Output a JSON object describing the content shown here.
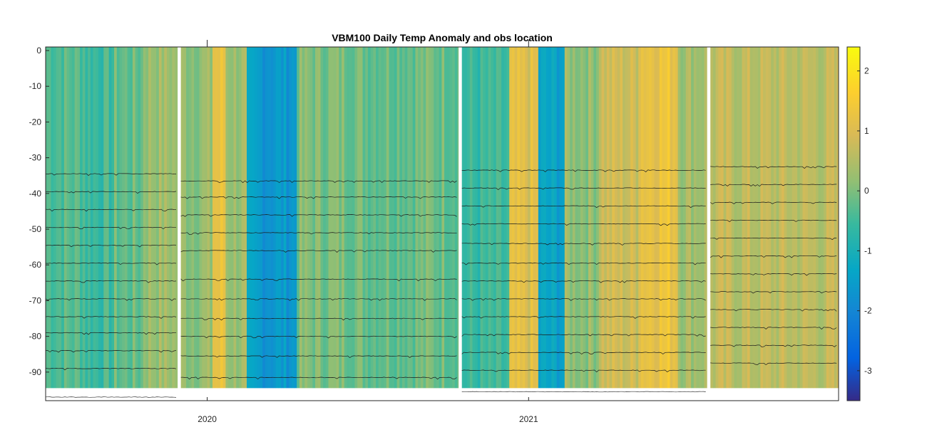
{
  "chart_data": {
    "type": "heatmap",
    "title": "VBM100 Daily Temp Anomaly and obs location",
    "xlabel": "",
    "ylabel": "",
    "x_ticks": [
      "2020",
      "2021"
    ],
    "y_ticks": [
      0,
      -10,
      -20,
      -30,
      -40,
      -50,
      -60,
      -70,
      -80,
      -90
    ],
    "ylim": [
      -98,
      1
    ],
    "colorbar": {
      "ticks": [
        2,
        1,
        0,
        -1,
        -2,
        -3
      ],
      "range": [
        -3.5,
        2.4
      ],
      "colormap": "parula"
    },
    "data_gap_separators": [
      "2019-11-30",
      "2020-10-15",
      "2021-07-25"
    ],
    "segments": [
      {
        "start": "2019-07-01",
        "end": "2019-11-28",
        "obs_depths": [
          -34.5,
          -39.5,
          -44.5,
          -49.5,
          -54.5,
          -59.5,
          -64.5,
          -69.5,
          -74.5,
          -79,
          -84,
          -89
        ],
        "bottom_trace_depth": -97
      },
      {
        "start": "2019-12-02",
        "end": "2020-10-13",
        "obs_depths": [
          -36.5,
          -41,
          -46,
          -51,
          -56,
          -64,
          -69.5,
          -75,
          -80,
          -85.5,
          -91.5
        ],
        "bottom_trace_depth": null
      },
      {
        "start": "2020-10-17",
        "end": "2021-07-23",
        "obs_depths": [
          -33.5,
          -38.5,
          -43.5,
          -48.5,
          -54,
          -59.5,
          -64.5,
          -69.5,
          -74.5,
          -79.5,
          -84.5,
          -89.5
        ],
        "bottom_trace_depth": -95.5
      },
      {
        "start": "2021-07-27",
        "end": "2021-12-20",
        "obs_depths": [
          -32.5,
          -37.5,
          -42.5,
          -47.5,
          -52.5,
          -57.5,
          -62.5,
          -67.5,
          -72.5,
          -77.5,
          -82.5,
          -87.5
        ],
        "bottom_trace_depth": null
      }
    ],
    "daily_surface_anomaly": [
      {
        "start": "2019-07-01",
        "end": "2019-08-15",
        "value": -0.3
      },
      {
        "start": "2019-08-15",
        "end": "2019-09-15",
        "value": -0.5
      },
      {
        "start": "2019-09-15",
        "end": "2019-10-20",
        "value": -0.2
      },
      {
        "start": "2019-10-20",
        "end": "2019-11-28",
        "value": 0.3
      },
      {
        "start": "2019-12-02",
        "end": "2020-01-05",
        "value": 0.2
      },
      {
        "start": "2020-01-05",
        "end": "2020-01-20",
        "value": 1.2
      },
      {
        "start": "2020-01-20",
        "end": "2020-02-15",
        "value": 0.3
      },
      {
        "start": "2020-02-15",
        "end": "2020-04-10",
        "value": -1.6
      },
      {
        "start": "2020-04-10",
        "end": "2020-06-15",
        "value": 0.0
      },
      {
        "start": "2020-06-15",
        "end": "2020-10-13",
        "value": -0.1
      },
      {
        "start": "2020-10-17",
        "end": "2020-12-10",
        "value": -0.6
      },
      {
        "start": "2020-12-10",
        "end": "2021-01-10",
        "value": 1.0
      },
      {
        "start": "2021-01-10",
        "end": "2021-02-10",
        "value": -1.4
      },
      {
        "start": "2021-02-10",
        "end": "2021-03-20",
        "value": 0.2
      },
      {
        "start": "2021-03-20",
        "end": "2021-05-05",
        "value": 0.8
      },
      {
        "start": "2021-05-05",
        "end": "2021-06-20",
        "value": 1.3
      },
      {
        "start": "2021-06-20",
        "end": "2021-07-23",
        "value": 0.4
      },
      {
        "start": "2021-07-27",
        "end": "2021-12-20",
        "value": 0.6
      }
    ],
    "grid": false,
    "legend": "colorbar-right"
  }
}
